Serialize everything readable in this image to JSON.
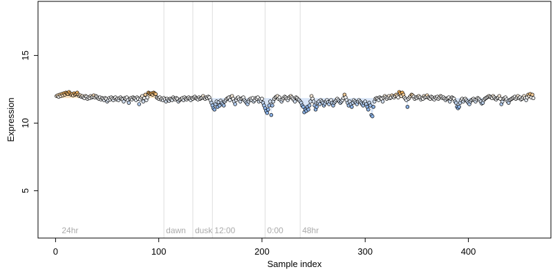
{
  "chart_data": {
    "type": "scatter",
    "title": "",
    "xlabel": "Sample index",
    "ylabel": "Expression",
    "xlim": [
      -17,
      480
    ],
    "ylim": [
      1.5,
      19.0
    ],
    "x_ticks": [
      0,
      100,
      200,
      300,
      400
    ],
    "y_ticks": [
      5,
      10,
      15
    ],
    "grid": false,
    "legend": "none",
    "vertical_markers": [
      {
        "x": 4,
        "label": "24hr",
        "line": false
      },
      {
        "x": 105,
        "label": "dawn",
        "line": true
      },
      {
        "x": 133,
        "label": "dusk",
        "line": true
      },
      {
        "x": 152,
        "label": "12:00",
        "line": true
      },
      {
        "x": 203,
        "label": "0:00",
        "line": true
      },
      {
        "x": 237,
        "label": "48hr",
        "line": true
      }
    ],
    "segments": [
      {
        "x_start": 1,
        "x_end": 39,
        "values": [
          12.0,
          12.05,
          11.95,
          12.1,
          12.0,
          12.15,
          12.05,
          12.2,
          12.1,
          12.25,
          12.2,
          12.15,
          12.3,
          12.2,
          12.1,
          12.15,
          12.05,
          12.2,
          12.1,
          12.15,
          12.25,
          12.1,
          12.0,
          12.05,
          11.95,
          12.0,
          11.9,
          11.85,
          12.0,
          11.95,
          11.8,
          11.9,
          11.85,
          12.0,
          11.9,
          11.95,
          12.05,
          11.9,
          12.0
        ]
      },
      {
        "x_start": 40,
        "x_end": 89,
        "values": [
          11.95,
          11.85,
          11.8,
          11.9,
          11.75,
          11.85,
          11.8,
          11.7,
          11.85,
          11.8,
          11.6,
          11.7,
          11.85,
          11.75,
          11.9,
          11.8,
          11.7,
          11.85,
          11.9,
          11.75,
          11.8,
          11.7,
          11.85,
          11.9,
          11.8,
          11.75,
          11.6,
          11.85,
          11.8,
          11.9,
          11.7,
          11.5,
          11.8,
          11.85,
          11.75,
          11.9,
          11.85,
          11.8,
          11.7,
          11.9,
          11.8,
          11.4,
          11.75,
          11.9,
          12.0,
          11.6,
          11.85,
          12.1,
          11.7,
          11.9
        ]
      },
      {
        "x_start": 90,
        "x_end": 97,
        "values": [
          12.25,
          12.2,
          12.15,
          12.2,
          12.1,
          12.25,
          12.2,
          12.15
        ]
      },
      {
        "x_start": 98,
        "x_end": 149,
        "values": [
          11.9,
          11.85,
          11.8,
          11.9,
          11.75,
          11.8,
          11.7,
          11.85,
          11.75,
          11.6,
          11.8,
          11.7,
          11.65,
          11.8,
          11.75,
          11.7,
          11.9,
          11.8,
          11.75,
          11.85,
          11.8,
          11.6,
          11.7,
          11.75,
          11.8,
          11.85,
          11.7,
          11.9,
          11.8,
          11.75,
          11.85,
          11.9,
          11.8,
          11.7,
          11.85,
          11.8,
          11.9,
          11.95,
          11.85,
          11.8,
          11.75,
          11.9,
          11.8,
          11.85,
          11.9,
          12.0,
          11.85,
          11.8,
          11.9,
          11.85,
          11.95,
          11.9
        ]
      },
      {
        "x_start": 150,
        "x_end": 200,
        "values": [
          11.7,
          11.5,
          11.3,
          11.1,
          11.0,
          11.4,
          11.6,
          11.2,
          11.55,
          11.3,
          11.65,
          11.5,
          11.4,
          11.3,
          11.6,
          11.7,
          11.8,
          11.85,
          11.9,
          11.7,
          11.95,
          12.0,
          11.8,
          11.6,
          11.4,
          11.7,
          11.85,
          11.9,
          11.75,
          11.6,
          11.8,
          11.85,
          11.9,
          11.7,
          11.6,
          11.5,
          11.4,
          11.6,
          11.75,
          11.8,
          11.7,
          11.85,
          11.6,
          11.7,
          11.85,
          11.8,
          11.9,
          11.6,
          11.75,
          11.65,
          11.8
        ]
      },
      {
        "x_start": 201,
        "x_end": 240,
        "values": [
          11.5,
          11.3,
          11.1,
          10.9,
          10.75,
          11.0,
          11.3,
          11.6,
          10.6,
          11.3,
          11.6,
          11.8,
          11.9,
          11.95,
          12.0,
          11.8,
          11.9,
          11.7,
          11.6,
          11.75,
          11.85,
          11.95,
          11.9,
          11.8,
          11.7,
          11.85,
          11.95,
          12.0,
          11.9,
          11.8,
          11.7,
          11.6,
          11.9,
          11.85,
          11.75,
          11.7,
          11.6,
          11.5,
          11.3,
          11.2
        ]
      },
      {
        "x_start": 241,
        "x_end": 300,
        "values": [
          10.8,
          11.0,
          10.9,
          11.2,
          11.0,
          11.3,
          11.6,
          12.0,
          11.8,
          11.6,
          11.3,
          11.0,
          11.2,
          11.5,
          11.6,
          11.4,
          11.7,
          11.6,
          11.5,
          11.3,
          11.45,
          11.6,
          11.7,
          11.55,
          11.4,
          11.6,
          11.7,
          11.5,
          11.3,
          11.5,
          11.6,
          11.7,
          11.8,
          11.7,
          11.6,
          11.5,
          11.6,
          11.7,
          11.85,
          12.1,
          11.9,
          11.7,
          11.5,
          11.3,
          11.6,
          11.4,
          11.2,
          11.5,
          11.7,
          11.6,
          11.5,
          11.4,
          11.6,
          11.7,
          11.6,
          11.5,
          11.4,
          11.3,
          11.5,
          11.6
        ]
      },
      {
        "x_start": 301,
        "x_end": 310,
        "values": [
          11.4,
          11.2,
          11.0,
          11.5,
          11.3,
          10.6,
          10.5,
          11.2,
          11.6,
          11.8
        ]
      },
      {
        "x_start": 311,
        "x_end": 385,
        "values": [
          11.85,
          11.8,
          11.7,
          11.9,
          11.85,
          11.8,
          11.6,
          11.9,
          12.0,
          11.9,
          11.8,
          11.9,
          12.0,
          11.85,
          11.9,
          12.05,
          11.95,
          11.9,
          12.0,
          12.1,
          12.0,
          11.9,
          12.3,
          12.2,
          12.0,
          12.25,
          12.1,
          11.9,
          11.8,
          11.7,
          11.2,
          11.8,
          11.9,
          12.0,
          12.1,
          12.05,
          11.95,
          11.8,
          11.9,
          11.85,
          11.95,
          12.0,
          11.9,
          11.75,
          11.85,
          11.8,
          12.0,
          11.9,
          11.95,
          12.05,
          11.9,
          11.85,
          11.8,
          11.95,
          11.9,
          11.8,
          11.75,
          11.9,
          11.85,
          11.95,
          11.8,
          11.9,
          12.0,
          11.95,
          11.85,
          11.9,
          11.8,
          11.7,
          11.8,
          11.85,
          11.9,
          11.6,
          11.8,
          11.9,
          11.85
        ]
      },
      {
        "x_start": 386,
        "x_end": 463,
        "values": [
          11.8,
          11.6,
          11.5,
          11.2,
          11.1,
          11.2,
          11.5,
          11.7,
          11.8,
          11.6,
          11.75,
          11.8,
          11.7,
          11.6,
          11.5,
          11.4,
          11.6,
          11.7,
          11.75,
          11.8,
          11.7,
          11.6,
          11.75,
          11.85,
          11.8,
          11.7,
          11.6,
          11.45,
          11.5,
          11.7,
          11.8,
          11.85,
          11.9,
          11.95,
          12.0,
          11.95,
          11.9,
          11.85,
          12.0,
          11.9,
          11.8,
          11.75,
          11.85,
          11.9,
          12.0,
          11.8,
          11.4,
          11.6,
          11.8,
          11.85,
          11.9,
          11.75,
          11.6,
          11.5,
          11.7,
          11.75,
          11.8,
          11.85,
          11.9,
          11.95,
          11.8,
          11.9,
          12.0,
          11.85,
          11.9,
          11.75,
          11.8,
          11.9,
          12.0,
          11.85,
          11.7,
          11.9,
          12.1,
          12.0,
          12.15,
          11.9,
          12.1,
          11.85
        ]
      }
    ]
  },
  "colors": {
    "axis": "#000000",
    "marker_line": "#dddddd",
    "marker_label": "#aaaaaa",
    "point_stroke": "#000000",
    "point_fill_low": "#8db4e8",
    "point_fill_mid": "#f0f0f0",
    "point_fill_high": "#f4b35e",
    "band_blue": "#b8d0f0",
    "band_orange": "#f5cc90"
  }
}
